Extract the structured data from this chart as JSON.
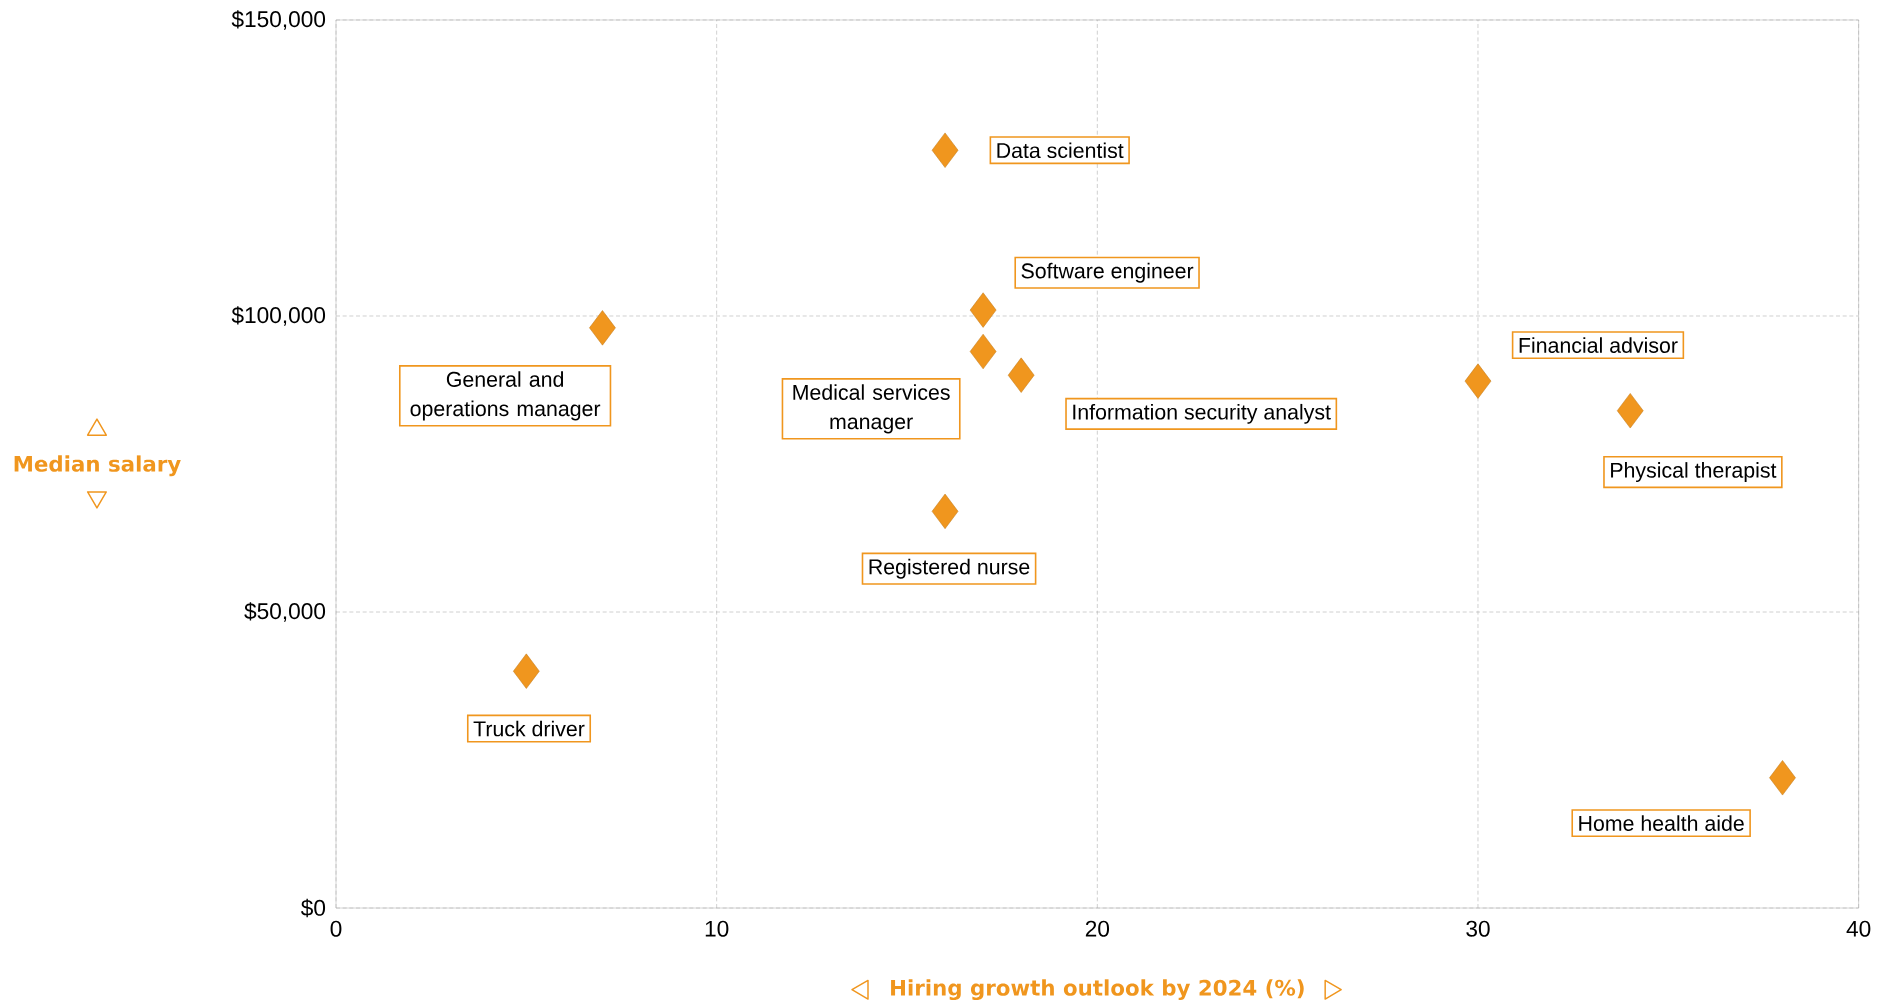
{
  "chart_data": {
    "type": "scatter",
    "xlabel": "Hiring growth outlook by 2024 (%)",
    "ylabel": "Median salary",
    "x": [
      16,
      17,
      7,
      17,
      18,
      30,
      34,
      16,
      5,
      38
    ],
    "series": [
      {
        "color": "#f0961e",
        "values": [
          128000,
          101000,
          98000,
          94000,
          90000,
          89000,
          84000,
          67000,
          40000,
          22000
        ]
      }
    ],
    "marker": "diamond",
    "grid": true,
    "xlim": [
      0,
      40
    ],
    "xticks": [
      0,
      10,
      20,
      30,
      40
    ],
    "ylim": [
      0,
      150000
    ],
    "yticks": [
      {
        "value": 0,
        "label": "$0"
      },
      {
        "value": 50000,
        "label": "$50,000"
      },
      {
        "value": 100000,
        "label": "$100,000"
      },
      {
        "value": 150000,
        "label": "$150,000"
      }
    ],
    "annotations": [
      {
        "text": "Data scientist",
        "x": 16,
        "y": 128000
      },
      {
        "text": "Software engineer",
        "x": 17,
        "y": 101000
      },
      {
        "text": "General and operations manager",
        "x": 7,
        "y": 98000
      },
      {
        "text": "Medical services manager",
        "x": 17,
        "y": 94000
      },
      {
        "text": "Information security analyst",
        "x": 18,
        "y": 90000
      },
      {
        "text": "Financial advisor",
        "x": 30,
        "y": 89000
      },
      {
        "text": "Physical therapist",
        "x": 34,
        "y": 84000
      },
      {
        "text": "Registered nurse",
        "x": 16,
        "y": 67000
      },
      {
        "text": "Truck driver",
        "x": 5,
        "y": 40000
      },
      {
        "text": "Home health aide",
        "x": 38,
        "y": 22000
      }
    ]
  }
}
